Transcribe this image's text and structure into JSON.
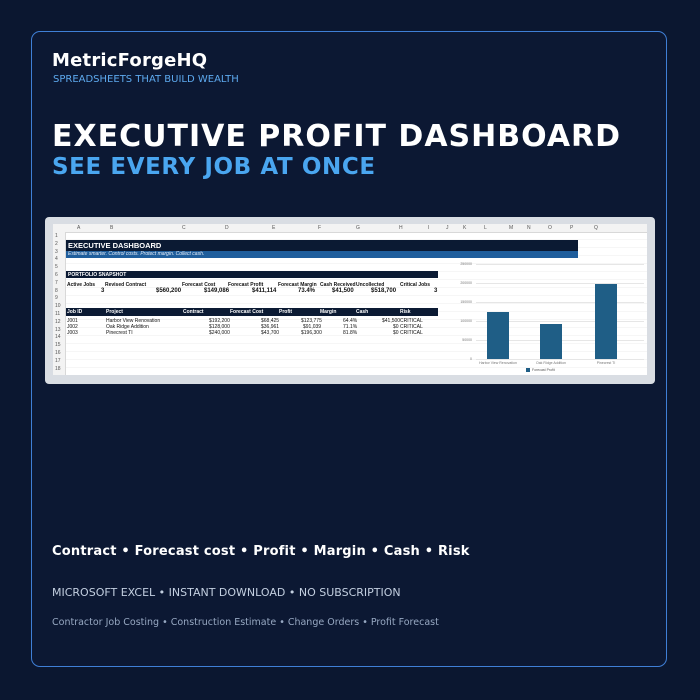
{
  "brand": {
    "name": "MetricForgeHQ",
    "tagline": "SPREADSHEETS THAT BUILD WEALTH"
  },
  "headline": {
    "title": "EXECUTIVE PROFIT DASHBOARD",
    "subtitle": "SEE EVERY JOB AT ONCE"
  },
  "spreadsheet": {
    "columns": [
      "A",
      "B",
      "C",
      "D",
      "E",
      "F",
      "G",
      "H",
      "I",
      "J",
      "K",
      "L",
      "M",
      "N",
      "O",
      "P",
      "Q"
    ],
    "rows": [
      "1",
      "2",
      "3",
      "4",
      "5",
      "6",
      "7",
      "8",
      "9",
      "10",
      "11",
      "12",
      "13",
      "14",
      "15",
      "16",
      "17",
      "18"
    ],
    "dashboard_title": "EXECUTIVE DASHBOARD",
    "dashboard_subtitle": "Estimate smarter. Control costs. Protect margin. Collect cash.",
    "snapshot_title": "PORTFOLIO SNAPSHOT",
    "snapshot_headers": [
      "Active Jobs",
      "Revised Contract",
      "Forecast Cost",
      "Forecast Profit",
      "Forecast Margin",
      "Cash Received",
      "Uncollected",
      "Critical Jobs"
    ],
    "snapshot_values": [
      "3",
      "$560,200",
      "$149,086",
      "$411,114",
      "73.4%",
      "$41,500",
      "$518,700",
      "3"
    ],
    "jobs_headers": [
      "Job ID",
      "Project",
      "Contract",
      "Forecast Cost",
      "Profit",
      "Margin",
      "Cash",
      "Risk"
    ],
    "jobs": [
      [
        "J001",
        "Harbor View Renovation",
        "$192,200",
        "$68,425",
        "$123,775",
        "64.4%",
        "$41,500",
        "CRITICAL"
      ],
      [
        "J002",
        "Oak Ridge Addition",
        "$128,000",
        "$36,961",
        "$91,039",
        "71.1%",
        "$0",
        "CRITICAL"
      ],
      [
        "J003",
        "Pinecrest TI",
        "$240,000",
        "$43,700",
        "$196,300",
        "81.8%",
        "$0",
        "CRITICAL"
      ]
    ]
  },
  "chart_data": {
    "type": "bar",
    "categories": [
      "Harbor View Renovation",
      "Oak Ridge Addition",
      "Pinecrest TI"
    ],
    "series": [
      {
        "name": "Forecast Profit",
        "values": [
          123775,
          91039,
          196300
        ]
      }
    ],
    "y_ticks": [
      "250000",
      "200000",
      "150000",
      "100000",
      "50000",
      "0"
    ],
    "ylim": [
      0,
      250000
    ],
    "legend": "bottom",
    "colors": {
      "bar": "#1f5e86"
    }
  },
  "features": "Contract • Forecast cost • Profit • Margin • Cash • Risk",
  "platform": "MICROSOFT EXCEL  •  INSTANT DOWNLOAD  •  NO SUBSCRIPTION",
  "keywords": "Contractor Job Costing • Construction Estimate • Change Orders • Profit Forecast",
  "colors": {
    "background": "#0b1730",
    "border": "#3f7fd6",
    "accent": "#4aa6f0",
    "sheet_header": "#0b1a33",
    "sheet_band": "#1f5e9c"
  }
}
